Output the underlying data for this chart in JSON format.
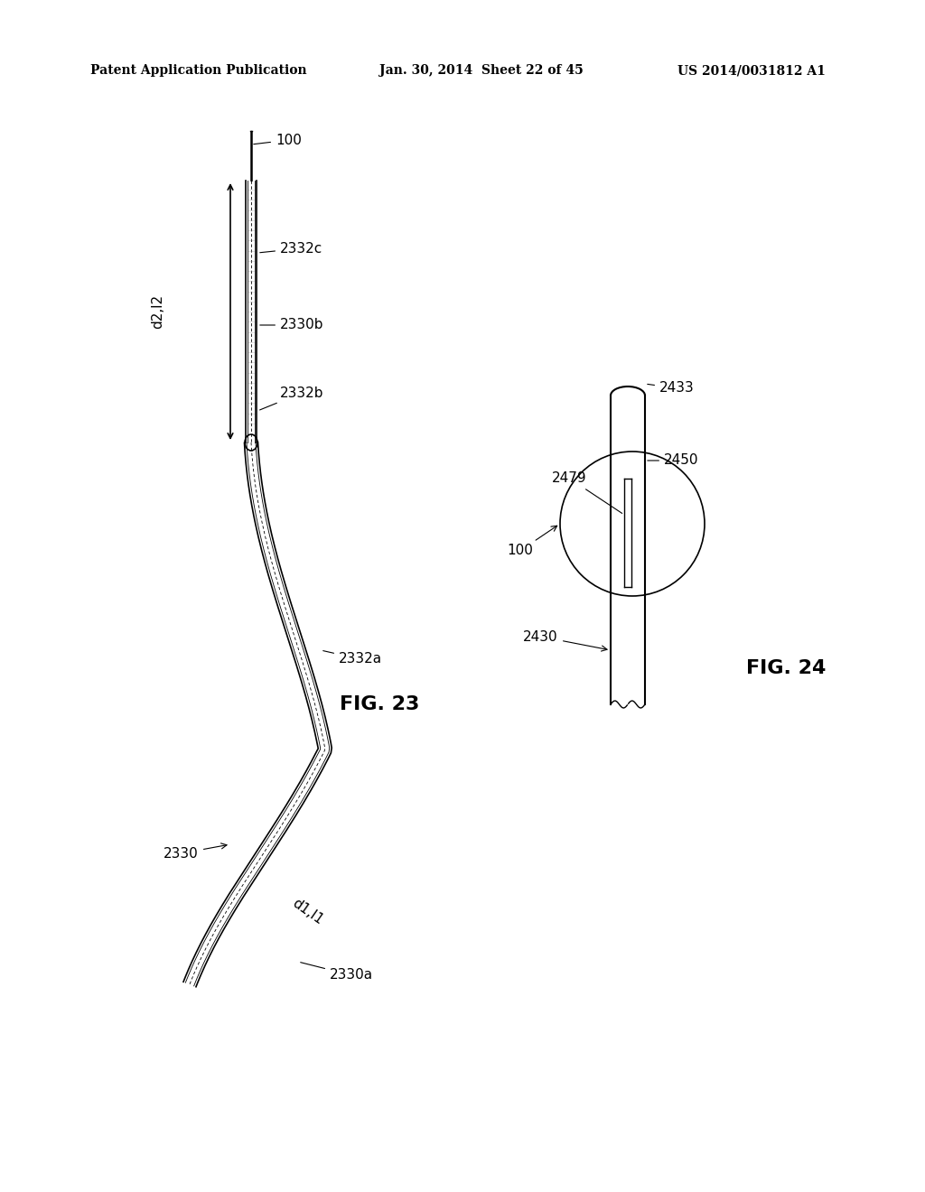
{
  "bg_color": "#ffffff",
  "header_left": "Patent Application Publication",
  "header_center": "Jan. 30, 2014  Sheet 22 of 45",
  "header_right": "US 2014/0031812 A1",
  "fig23_label": "FIG. 23",
  "fig24_label": "FIG. 24",
  "labels": {
    "100_top": "100",
    "2332c": "2332c",
    "2330b": "2330b",
    "2332b": "2332b",
    "2332a": "2332a",
    "2330": "2330",
    "d1l1": "d1,l1",
    "2330a": "2330a",
    "d2l2": "d2,l2",
    "2433": "2433",
    "2450": "2450",
    "2479": "2479",
    "100_right": "100",
    "2430": "2430",
    "fig24_2433": "2433"
  }
}
